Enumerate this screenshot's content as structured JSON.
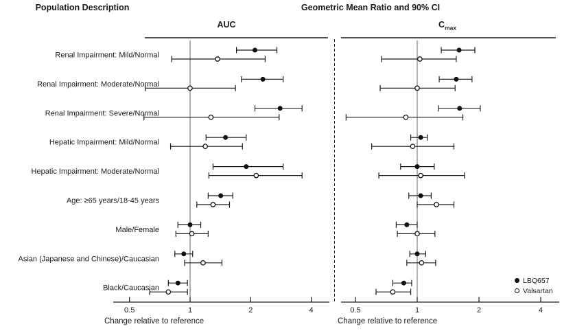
{
  "headers": {
    "population": "Population Description",
    "gmr": "Geometric Mean Ratio and 90% CI"
  },
  "colors": {
    "ink": "#1a1a1a",
    "background": "#ffffff",
    "reference_line": "#6f6f6f"
  },
  "legend": [
    {
      "label": "LBQ657",
      "marker": "filled-circle"
    },
    {
      "label": "Valsartan",
      "marker": "open-circle"
    }
  ],
  "chart_data": {
    "type": "forest",
    "scale": "log2",
    "xlim": [
      0.5,
      4
    ],
    "grid": false,
    "legend_position": "bottom-right",
    "categories": [
      "Renal Impairment: Mild/Normal",
      "Renal Impairment: Moderate/Normal",
      "Renal Impairment: Severe/Normal",
      "Hepatic Impairment: Mild/Normal",
      "Hepatic Impairment: Moderate/Normal",
      "Age: ≥65 years/18-45 years",
      "Male/Female",
      "Asian (Japanese and Chinese)/Caucasian",
      "Black/Caucasian"
    ],
    "panels": [
      {
        "title": "AUC",
        "xlabel": "Change relative to reference",
        "xticks": [
          0.5,
          1,
          2,
          4
        ],
        "refline": 1,
        "series": [
          {
            "name": "LBQ657",
            "marker": "filled",
            "points": [
              {
                "est": 2.1,
                "lo": 1.7,
                "hi": 2.7
              },
              {
                "est": 2.3,
                "lo": 1.8,
                "hi": 2.9
              },
              {
                "est": 2.8,
                "lo": 2.1,
                "hi": 3.6
              },
              {
                "est": 1.5,
                "lo": 1.2,
                "hi": 1.9
              },
              {
                "est": 1.9,
                "lo": 1.3,
                "hi": 2.9
              },
              {
                "est": 1.42,
                "lo": 1.23,
                "hi": 1.63
              },
              {
                "est": 1.0,
                "lo": 0.87,
                "hi": 1.13
              },
              {
                "est": 0.93,
                "lo": 0.84,
                "hi": 1.03
              },
              {
                "est": 0.87,
                "lo": 0.78,
                "hi": 0.97
              }
            ]
          },
          {
            "name": "Valsartan",
            "marker": "open",
            "points": [
              {
                "est": 1.37,
                "lo": 0.81,
                "hi": 2.36
              },
              {
                "est": 1.0,
                "lo": 0.6,
                "hi": 1.68
              },
              {
                "est": 1.27,
                "lo": 0.59,
                "hi": 2.77
              },
              {
                "est": 1.19,
                "lo": 0.8,
                "hi": 1.82
              },
              {
                "est": 2.13,
                "lo": 1.24,
                "hi": 3.6
              },
              {
                "est": 1.3,
                "lo": 1.08,
                "hi": 1.57
              },
              {
                "est": 1.02,
                "lo": 0.85,
                "hi": 1.23
              },
              {
                "est": 1.16,
                "lo": 0.94,
                "hi": 1.44
              },
              {
                "est": 0.78,
                "lo": 0.63,
                "hi": 0.97
              }
            ]
          }
        ]
      },
      {
        "title_main": "C",
        "title_sub": "max",
        "xlabel": "Change relative to reference",
        "xticks": [
          0.5,
          1,
          2,
          4
        ],
        "refline": 1,
        "series": [
          {
            "name": "LBQ657",
            "marker": "filled",
            "points": [
              {
                "est": 1.6,
                "lo": 1.31,
                "hi": 1.91
              },
              {
                "est": 1.55,
                "lo": 1.28,
                "hi": 1.85
              },
              {
                "est": 1.61,
                "lo": 1.27,
                "hi": 2.03
              },
              {
                "est": 1.04,
                "lo": 0.93,
                "hi": 1.12
              },
              {
                "est": 1.0,
                "lo": 0.83,
                "hi": 1.21
              },
              {
                "est": 1.04,
                "lo": 0.91,
                "hi": 1.17
              },
              {
                "est": 0.89,
                "lo": 0.79,
                "hi": 1.0
              },
              {
                "est": 1.0,
                "lo": 0.92,
                "hi": 1.1
              },
              {
                "est": 0.86,
                "lo": 0.76,
                "hi": 0.94
              }
            ]
          },
          {
            "name": "Valsartan",
            "marker": "open",
            "points": [
              {
                "est": 1.03,
                "lo": 0.67,
                "hi": 1.55
              },
              {
                "est": 1.0,
                "lo": 0.66,
                "hi": 1.53
              },
              {
                "est": 0.88,
                "lo": 0.45,
                "hi": 1.67
              },
              {
                "est": 0.95,
                "lo": 0.6,
                "hi": 1.51
              },
              {
                "est": 1.04,
                "lo": 0.65,
                "hi": 1.7
              },
              {
                "est": 1.24,
                "lo": 1.0,
                "hi": 1.51
              },
              {
                "est": 1.0,
                "lo": 0.8,
                "hi": 1.22
              },
              {
                "est": 1.05,
                "lo": 0.89,
                "hi": 1.23
              },
              {
                "est": 0.76,
                "lo": 0.63,
                "hi": 0.93
              }
            ]
          }
        ]
      }
    ]
  }
}
